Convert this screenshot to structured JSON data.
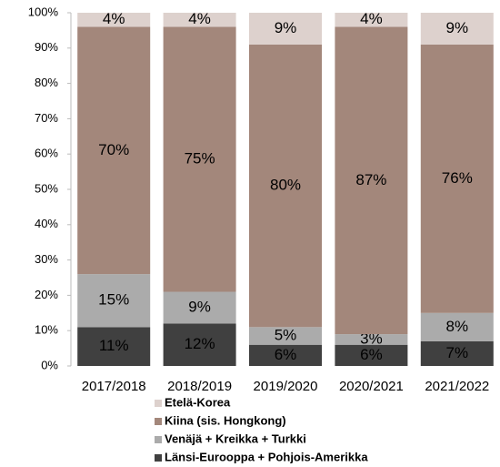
{
  "chart_data": {
    "type": "stacked_bar",
    "categories": [
      "2017/2018",
      "2018/2019",
      "2019/2020",
      "2020/2021",
      "2021/2022"
    ],
    "series": [
      {
        "name": "Länsi-Eurooppa + Pohjois-Amerikka",
        "color": "#404040",
        "values": [
          11,
          12,
          6,
          6,
          7
        ],
        "value_labels": [
          "11%",
          "12%",
          "6%",
          "6%",
          "7%"
        ]
      },
      {
        "name": "Venäjä + Kreikka + Turkki",
        "color": "#ababab",
        "values": [
          15,
          9,
          5,
          3,
          8
        ],
        "value_labels": [
          "15%",
          "9%",
          "5%",
          "3%",
          "8%"
        ]
      },
      {
        "name": "Kiina (sis. Hongkong)",
        "color": "#a3877b",
        "values": [
          70,
          75,
          80,
          87,
          76
        ],
        "value_labels": [
          "70%",
          "75%",
          "80%",
          "87%",
          "76%"
        ]
      },
      {
        "name": "Etelä-Korea",
        "color": "#ddd1cd",
        "values": [
          4,
          4,
          9,
          4,
          9
        ],
        "value_labels": [
          "4%",
          "4%",
          "9%",
          "4%",
          "9%"
        ]
      }
    ],
    "ylim": [
      0,
      100
    ],
    "yticks": [
      {
        "value": 0,
        "label": "0%"
      },
      {
        "value": 10,
        "label": "10%"
      },
      {
        "value": 20,
        "label": "20%"
      },
      {
        "value": 30,
        "label": "30%"
      },
      {
        "value": 40,
        "label": "40%"
      },
      {
        "value": 50,
        "label": "50%"
      },
      {
        "value": 60,
        "label": "60%"
      },
      {
        "value": 70,
        "label": "70%"
      },
      {
        "value": 80,
        "label": "80%"
      },
      {
        "value": 90,
        "label": "90%"
      },
      {
        "value": 100,
        "label": "100%"
      }
    ]
  }
}
